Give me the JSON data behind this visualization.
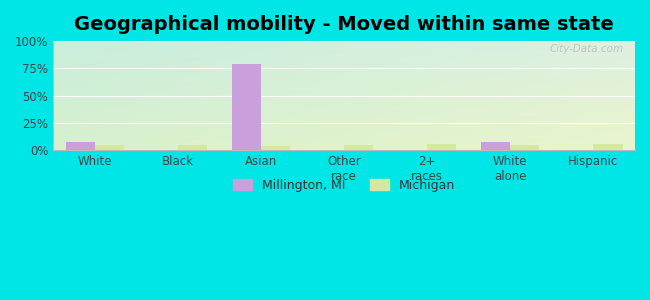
{
  "title": "Geographical mobility - Moved within same state",
  "categories": [
    "White",
    "Black",
    "Asian",
    "Other\nrace",
    "2+\nraces",
    "White\nalone",
    "Hispanic"
  ],
  "millington_values": [
    8,
    0,
    79,
    0,
    0,
    8,
    0
  ],
  "michigan_values": [
    5,
    5,
    4,
    5,
    6,
    5,
    6
  ],
  "millington_color": "#c9a0dc",
  "michigan_color": "#d4e8a0",
  "bar_width": 0.35,
  "ylim": [
    0,
    100
  ],
  "yticks": [
    0,
    25,
    50,
    75,
    100
  ],
  "ytick_labels": [
    "0%",
    "25%",
    "50%",
    "75%",
    "100%"
  ],
  "outer_bg": "#00e5e5",
  "legend_millington": "Millington, MI",
  "legend_michigan": "Michigan",
  "title_fontsize": 14,
  "watermark": "City-Data.com",
  "grid_color": "#ffffff",
  "plot_bg_topleft": "#c8eedd",
  "plot_bg_bottomright": "#e8f5cc"
}
